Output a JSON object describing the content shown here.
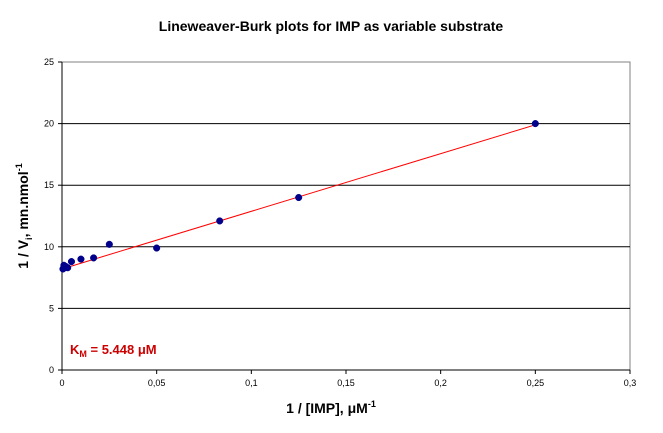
{
  "chart_data": {
    "type": "scatter",
    "title": "Lineweaver-Burk plots for IMP as variable substrate",
    "xlabel": {
      "main": "1 / [IMP], μM",
      "sup": "-1"
    },
    "ylabel": {
      "pre": "1 / V",
      "sub": "i",
      "mid": ", mn.nmol",
      "sup": "-1"
    },
    "xlim": [
      0,
      0.3
    ],
    "ylim": [
      0,
      25
    ],
    "x_ticks": [
      0,
      0.05,
      0.1,
      0.15,
      0.2,
      0.25,
      0.3
    ],
    "x_tick_labels": [
      "0",
      "0,05",
      "0,1",
      "0,15",
      "0,2",
      "0,25",
      "0,3"
    ],
    "y_ticks": [
      0,
      5,
      10,
      15,
      20,
      25
    ],
    "y_tick_labels": [
      "0",
      "5",
      "10",
      "15",
      "20",
      "25"
    ],
    "grid": "horizontal major gridlines",
    "legend": "none",
    "series": [
      {
        "marker": "circle",
        "color": "#00008B",
        "x": [
          0.0005,
          0.001,
          0.0015,
          0.002,
          0.003,
          0.005,
          0.01,
          0.0167,
          0.025,
          0.05,
          0.0833,
          0.125,
          0.25
        ],
        "y": [
          8.2,
          8.5,
          8.3,
          8.4,
          8.3,
          8.8,
          9.0,
          9.1,
          10.2,
          9.9,
          12.1,
          14.0,
          20.0
        ]
      }
    ],
    "trendline": {
      "type": "linear",
      "color": "#FF0000",
      "x": [
        0,
        0.25
      ],
      "y": [
        8.2,
        19.9
      ]
    },
    "annotation": {
      "pre": "K",
      "sub": "M",
      "post": " = 5.448 μM",
      "color": "#CC0000"
    }
  }
}
